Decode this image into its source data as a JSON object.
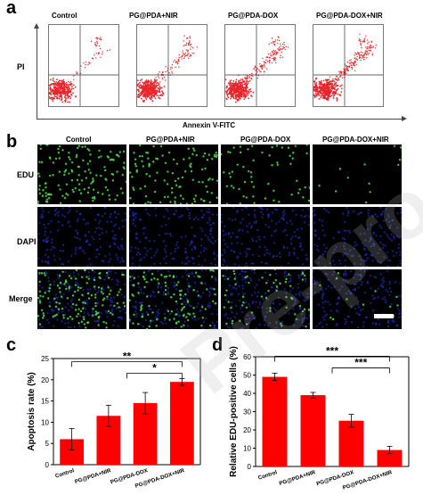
{
  "panel_a": {
    "letter": "a",
    "y_axis_label": "PI",
    "x_axis_label": "Annexin V-FITC",
    "plots": [
      {
        "title": "Control"
      },
      {
        "title": "PG@PDA+NIR"
      },
      {
        "title": "PG@PDA-DOX"
      },
      {
        "title": "PG@PDA-DOX+NIR"
      }
    ],
    "dot_color": "#e8262c"
  },
  "panel_b": {
    "letter": "b",
    "columns": [
      "Control",
      "PG@PDA+NIR",
      "PG@PDA-DOX",
      "PG@PDA-DOX+NIR"
    ],
    "rows": [
      "EDU",
      "DAPI",
      "Merge"
    ],
    "edu_color": "#4fe34a",
    "dapi_color": "#2a3cff"
  },
  "watermark_text": "Pre-proof",
  "chart_data": [
    {
      "type": "bar",
      "panel": "c",
      "title": "",
      "xlabel": "",
      "ylabel": "Apoptosis rate (%)",
      "ylim": [
        0,
        25
      ],
      "yticks": [
        0,
        5,
        10,
        15,
        20,
        25
      ],
      "categories": [
        "Control",
        "PG@PDA+NIR",
        "PG@PDA-DOX",
        "PG@PDA-DOX+NIR"
      ],
      "values": [
        6.0,
        11.5,
        14.5,
        19.5
      ],
      "errors": [
        2.5,
        2.5,
        2.5,
        0.8
      ],
      "bar_color": "#ff0000",
      "significance": [
        {
          "label": "**",
          "from": 0,
          "to": 3
        },
        {
          "label": "*",
          "from": 1.5,
          "to": 3
        }
      ]
    },
    {
      "type": "bar",
      "panel": "d",
      "title": "",
      "xlabel": "",
      "ylabel": "Relative EDU-positive cells (%)",
      "ylim": [
        0,
        60
      ],
      "yticks": [
        0,
        10,
        20,
        30,
        40,
        50,
        60
      ],
      "categories": [
        "Control",
        "PG@PDA+NIR",
        "PG@PDA-DOX",
        "PG@PDA-DOX+NIR"
      ],
      "values": [
        49,
        39,
        25,
        9
      ],
      "errors": [
        2,
        1.5,
        3.5,
        2
      ],
      "bar_color": "#ff0000",
      "significance": [
        {
          "label": "***",
          "from": 0,
          "to": 3
        },
        {
          "label": "***",
          "from": 1.5,
          "to": 3
        }
      ]
    }
  ]
}
